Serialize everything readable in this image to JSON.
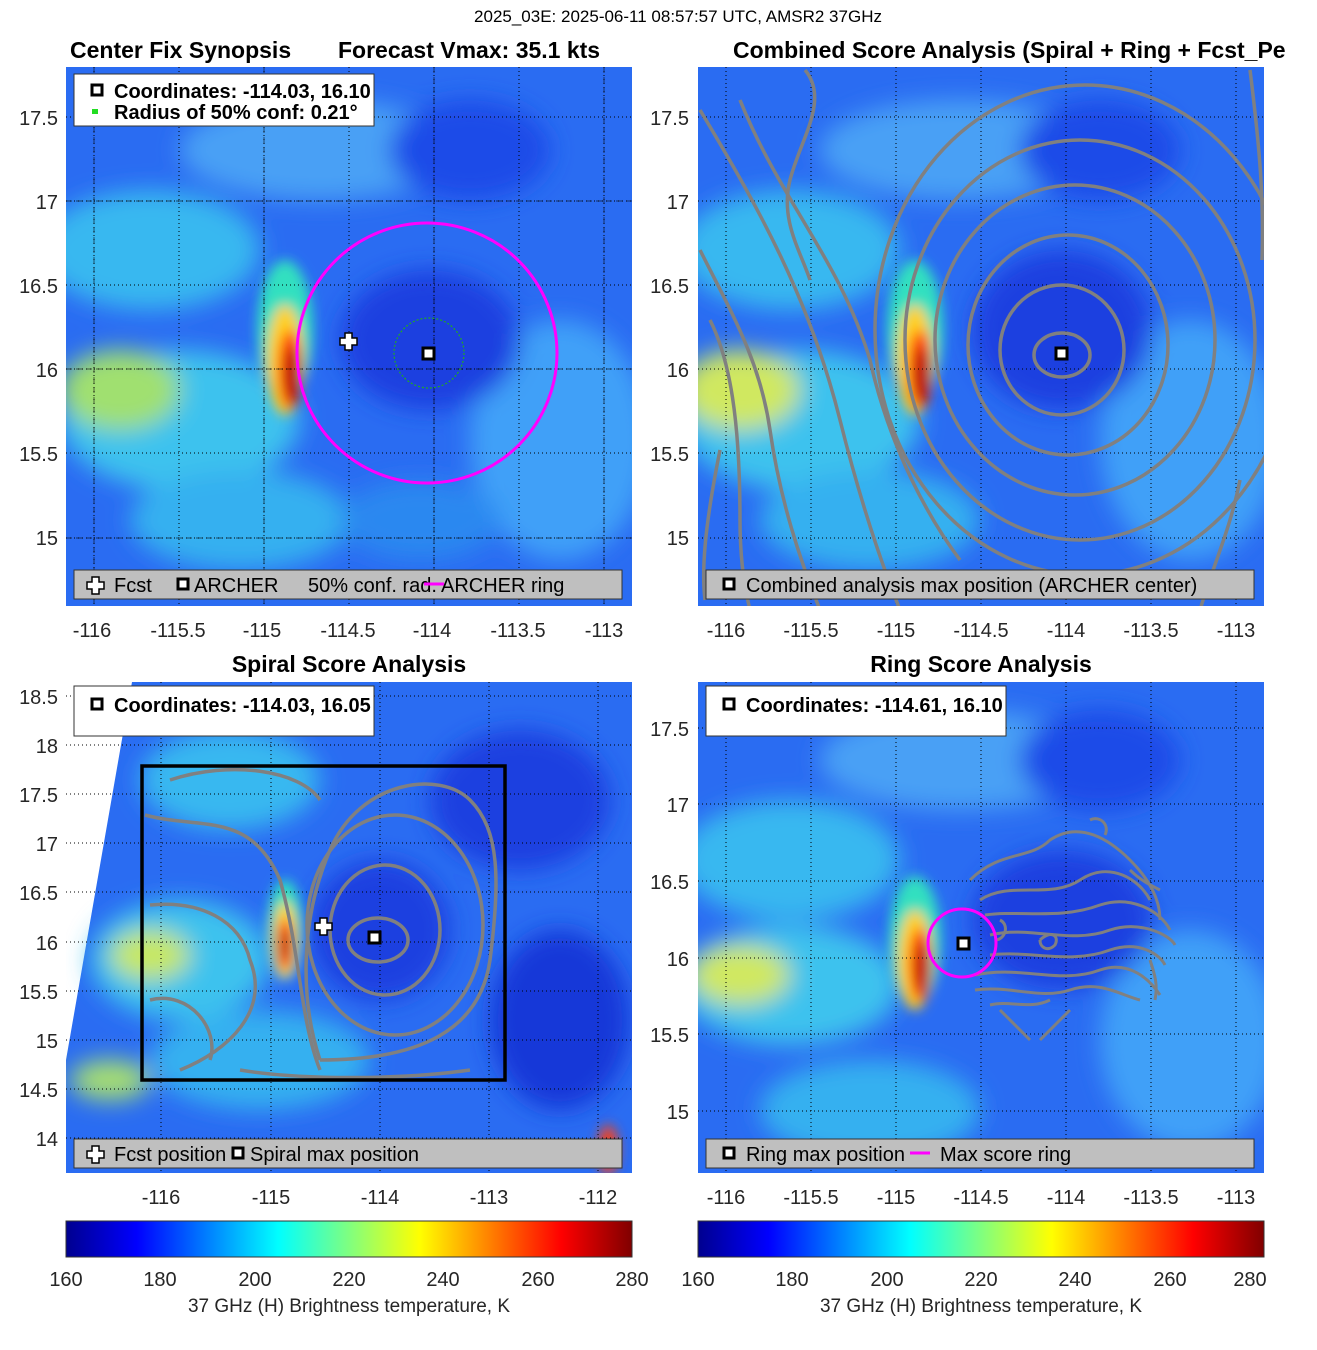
{
  "suptitle": "2025_03E: 2025-06-11 08:57:57 UTC, AMSR2 37GHz",
  "panels": {
    "synopsis": {
      "title_left": "Center Fix Synopsis",
      "title_right": "Forecast Vmax: 35.1 kts",
      "info": [
        "Coordinates: -114.03, 16.10",
        "Radius of 50% conf: 0.21°"
      ],
      "legend": [
        "Fcst",
        "ARCHER",
        "50% conf. rad.",
        "ARCHER ring"
      ]
    },
    "combined": {
      "title": "Combined Score Analysis (Spiral + Ring + Fcst_Pe",
      "legend": [
        "Combined analysis max position (ARCHER center)"
      ]
    },
    "spiral": {
      "title": "Spiral Score Analysis",
      "info": [
        "Coordinates: -114.03, 16.05"
      ],
      "legend": [
        "Fcst position",
        "Spiral max position"
      ]
    },
    "ring": {
      "title": "Ring Score Analysis",
      "info": [
        "Coordinates: -114.61, 16.10"
      ],
      "legend": [
        "Ring max position",
        "Max score ring"
      ]
    }
  },
  "colorbar": {
    "label": "37 GHz (H) Brightness temperature, K",
    "ticks": [
      "160",
      "180",
      "200",
      "220",
      "240",
      "260",
      "280"
    ],
    "range": [
      160,
      280
    ],
    "colormap": [
      "#00008f",
      "#0000ff",
      "#00ffff",
      "#ffff00",
      "#ff0000",
      "#800000"
    ]
  },
  "colors": {
    "ring": "#ff00ff",
    "contour": "#808080",
    "conf_circle": "#22aa22",
    "legend_bg": "#bfbfbf"
  },
  "chart_data": [
    {
      "type": "heatmap",
      "title": "Center Fix Synopsis / Forecast Vmax: 35.1 kts",
      "xlabel": "",
      "ylabel": "",
      "xlim": [
        -116.15,
        -112.85
      ],
      "ylim": [
        14.6,
        17.8
      ],
      "xticks": [
        -116,
        -115.5,
        -115,
        -114.5,
        -114,
        -113.5,
        -113
      ],
      "yticks": [
        15,
        15.5,
        16,
        16.5,
        17,
        17.5
      ],
      "x_tick_labels": [
        "-116",
        "-115.5",
        "-115",
        "-114.5",
        "-114",
        "-113.5",
        "-113"
      ],
      "y_tick_labels": [
        "15",
        "15.5",
        "16",
        "16.5",
        "17",
        "17.5"
      ],
      "archer_center": [
        -114.03,
        16.1
      ],
      "forecast_position": [
        -114.5,
        16.18
      ],
      "confidence_radius_deg": 0.21,
      "archer_ring_radius_deg": 0.75
    },
    {
      "type": "heatmap",
      "title": "Combined Score Analysis (Spiral + Ring + Fcst_Pe",
      "xlim": [
        -116.15,
        -112.85
      ],
      "ylim": [
        14.6,
        17.8
      ],
      "xticks": [
        -116,
        -115.5,
        -115,
        -114.5,
        -114,
        -113.5,
        -113
      ],
      "yticks": [
        15,
        15.5,
        16,
        16.5,
        17,
        17.5
      ],
      "x_tick_labels": [
        "-116",
        "-115.5",
        "-115",
        "-114.5",
        "-114",
        "-113.5",
        "-113"
      ],
      "y_tick_labels": [
        "15",
        "15.5",
        "16",
        "16.5",
        "17",
        "17.5"
      ],
      "max_position": [
        -114.03,
        16.1
      ]
    },
    {
      "type": "heatmap",
      "title": "Spiral Score Analysis",
      "xlim": [
        -116.9,
        -111.7
      ],
      "ylim": [
        13.6,
        18.6
      ],
      "xticks": [
        -116,
        -115,
        -114,
        -113,
        -112
      ],
      "yticks": [
        14,
        14.5,
        15,
        15.5,
        16,
        16.5,
        17,
        17.5,
        18,
        18.5
      ],
      "x_tick_labels": [
        "-116",
        "-115",
        "-114",
        "-113",
        "-112"
      ],
      "y_tick_labels": [
        "14",
        "14.5",
        "15",
        "15.5",
        "16",
        "16.5",
        "17",
        "17.5",
        "18",
        "18.5"
      ],
      "spiral_max": [
        -114.03,
        16.05
      ],
      "forecast_position": [
        -114.5,
        16.18
      ],
      "box": {
        "lon": [
          -116.2,
          -112.9
        ],
        "lat": [
          14.6,
          17.8
        ]
      }
    },
    {
      "type": "heatmap",
      "title": "Ring Score Analysis",
      "xlim": [
        -116.15,
        -112.85
      ],
      "ylim": [
        14.6,
        17.9
      ],
      "xticks": [
        -116,
        -115.5,
        -115,
        -114.5,
        -114,
        -113.5,
        -113
      ],
      "yticks": [
        15,
        15.5,
        16,
        16.5,
        17,
        17.5
      ],
      "x_tick_labels": [
        "-116",
        "-115.5",
        "-115",
        "-114.5",
        "-114",
        "-113.5",
        "-113"
      ],
      "y_tick_labels": [
        "15",
        "15.5",
        "16",
        "16.5",
        "17",
        "17.5"
      ],
      "ring_max": [
        -114.61,
        16.1
      ],
      "max_score_ring_radius_deg": 0.2
    }
  ]
}
